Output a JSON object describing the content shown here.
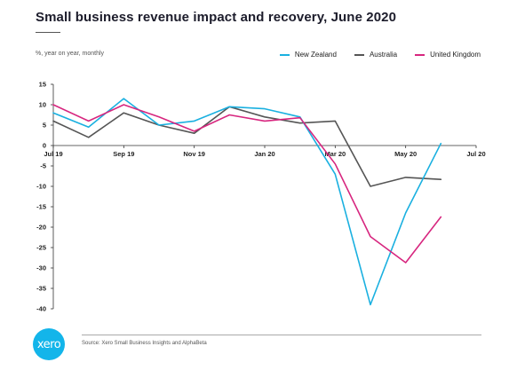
{
  "title": "Small business revenue impact and recovery, June 2020",
  "subtitle": "%, year on year, monthly",
  "source": "Source: Xero Small Business Insights and AlphaBeta",
  "logo_text": "xero",
  "chart_data": {
    "type": "line",
    "title": "Small business revenue impact and recovery, June 2020",
    "ylabel": "%, year on year, monthly",
    "x": [
      "2019-07",
      "2019-08",
      "2019-09",
      "2019-10",
      "2019-11",
      "2019-12",
      "2020-01",
      "2020-02",
      "2020-03",
      "2020-04",
      "2020-05",
      "2020-06"
    ],
    "x_tick_labels": [
      "Jul 19",
      "Sep 19",
      "Nov 19",
      "Jan 20",
      "Mar 20",
      "May 20",
      "Jul 20"
    ],
    "x_tick_dates": [
      "2019-07",
      "2019-09",
      "2019-11",
      "2020-01",
      "2020-03",
      "2020-05",
      "2020-07"
    ],
    "xlim": [
      "2019-07",
      "2020-07"
    ],
    "y_ticks": [
      15,
      10,
      5,
      0,
      -5,
      -10,
      -15,
      -20,
      -25,
      -30,
      -35,
      -40
    ],
    "ylim": [
      -40,
      15
    ],
    "grid": false,
    "legend_position": "top-right",
    "series": [
      {
        "name": "New Zealand",
        "color": "#1ab0e0",
        "values": [
          8,
          4.5,
          11.5,
          5,
          6,
          9.5,
          9,
          7,
          -7,
          -39,
          -16.5,
          0.5
        ]
      },
      {
        "name": "Australia",
        "color": "#555555",
        "values": [
          6,
          2,
          8,
          5,
          3,
          9.5,
          7,
          5.5,
          6,
          -10,
          -7.8,
          -8.3
        ]
      },
      {
        "name": "United Kingdom",
        "color": "#d7267f",
        "values": [
          10,
          6,
          10,
          7,
          3.5,
          7.5,
          6,
          6.8,
          -4.5,
          -22.3,
          -28.7,
          -17.5
        ]
      }
    ]
  }
}
